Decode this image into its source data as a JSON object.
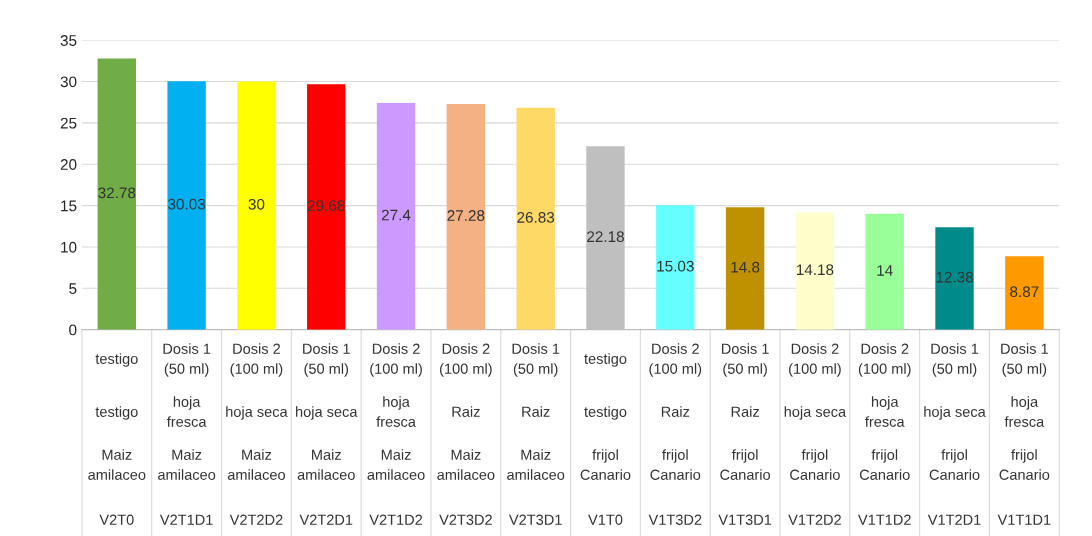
{
  "chart_data": {
    "type": "bar",
    "categories": [
      "testigo\ntestigo\nMaiz amilaceo\nV2T0",
      "Dosis 1 (50 ml)\nhoja fresca\nMaiz amilaceo\nV2T1D1",
      "Dosis 2 (100 ml)\nhoja seca\nMaiz amilaceo\nV2T2D2",
      "Dosis 1 (50 ml)\nhoja seca\nMaiz amilaceo\nV2T2D1",
      "Dosis 2 (100 ml)\nhoja fresca\nMaiz amilaceo\nV2T1D2",
      "Dosis 2 (100 ml)\nRaiz\nMaiz amilaceo\nV2T3D2",
      "Dosis 1 (50 ml)\nRaiz\nMaiz amilaceo\nV2T3D1",
      "testigo\ntestigo\nfrijol Canario\nV1T0",
      "Dosis 2 (100 ml)\nRaiz\nfrijol Canario\nV1T3D2",
      "Dosis 1 (50 ml)\nRaiz\nfrijol Canario\nV1T3D1",
      "Dosis 2 (100 ml)\nhoja seca\nfrijol Canario\nV1T2D2",
      "Dosis 2 (100 ml)\nhoja fresca\nfrijol Canario\nV1T1D2",
      "Dosis 1 (50 ml)\nhoja seca\nfrijol Canario\nV1T2D1",
      "Dosis 1 (50 ml)\nhoja fresca\nfrijol Canario\nV1T1D1"
    ],
    "values": [
      32.78,
      30.03,
      30,
      29.68,
      27.4,
      27.28,
      26.83,
      22.18,
      15.03,
      14.8,
      14.18,
      14,
      12.38,
      8.87
    ],
    "colors": [
      "#70ad47",
      "#00b0f0",
      "#ffff00",
      "#ff0000",
      "#cc99ff",
      "#f4b183",
      "#ffd966",
      "#bfbfbf",
      "#66ffff",
      "#bf9000",
      "#ffffcc",
      "#99ff99",
      "#008b8b",
      "#ff9900"
    ],
    "ylim": [
      0,
      35
    ],
    "yticks": [
      0,
      5,
      10,
      15,
      20,
      25,
      30,
      35
    ],
    "grid": "y",
    "data_labels": true
  }
}
